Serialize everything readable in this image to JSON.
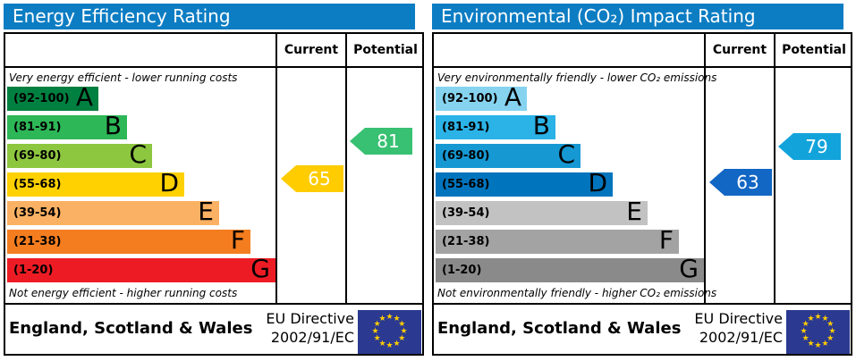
{
  "accent_color": "#0d7dc3",
  "eu_flag": {
    "background": "#2b3990",
    "star_color": "#ffcc00",
    "star_count": 12
  },
  "panels": [
    {
      "title": "Energy Efficiency Rating",
      "header": {
        "current": "Current",
        "potential": "Potential"
      },
      "top_caption": "Very energy efficient - lower running costs",
      "bottom_caption": "Not energy efficient - higher running costs",
      "bands": [
        {
          "range": "(92-100)",
          "letter": "A",
          "min": 92,
          "max": 100,
          "color": "#008040"
        },
        {
          "range": "(81-91)",
          "letter": "B",
          "min": 81,
          "max": 91,
          "color": "#2db757"
        },
        {
          "range": "(69-80)",
          "letter": "C",
          "min": 69,
          "max": 80,
          "color": "#8dc63f"
        },
        {
          "range": "(55-68)",
          "letter": "D",
          "min": 55,
          "max": 68,
          "color": "#ffd100"
        },
        {
          "range": "(39-54)",
          "letter": "E",
          "min": 39,
          "max": 54,
          "color": "#fbb163"
        },
        {
          "range": "(21-38)",
          "letter": "F",
          "min": 21,
          "max": 38,
          "color": "#f47d1f"
        },
        {
          "range": "(1-20)",
          "letter": "G",
          "min": 1,
          "max": 20,
          "color": "#ed1c24"
        }
      ],
      "current": {
        "value": "65",
        "color": "#ffcc00"
      },
      "potential": {
        "value": "81",
        "color": "#38c172"
      },
      "footer": {
        "region": "England, Scotland & Wales",
        "directive_line1": "EU Directive",
        "directive_line2": "2002/91/EC"
      }
    },
    {
      "title": "Environmental (CO₂) Impact Rating",
      "header": {
        "current": "Current",
        "potential": "Potential"
      },
      "top_caption": "Very environmentally friendly - lower CO₂ emissions",
      "bottom_caption": "Not environmentally friendly - higher CO₂ emissions",
      "bands": [
        {
          "range": "(92-100)",
          "letter": "A",
          "min": 92,
          "max": 100,
          "color": "#86d3f0"
        },
        {
          "range": "(81-91)",
          "letter": "B",
          "min": 81,
          "max": 91,
          "color": "#2bb2e7"
        },
        {
          "range": "(69-80)",
          "letter": "C",
          "min": 69,
          "max": 80,
          "color": "#1698d3"
        },
        {
          "range": "(55-68)",
          "letter": "D",
          "min": 55,
          "max": 68,
          "color": "#0074bd"
        },
        {
          "range": "(39-54)",
          "letter": "E",
          "min": 39,
          "max": 54,
          "color": "#c2c2c2"
        },
        {
          "range": "(21-38)",
          "letter": "F",
          "min": 21,
          "max": 38,
          "color": "#a3a3a3"
        },
        {
          "range": "(1-20)",
          "letter": "G",
          "min": 1,
          "max": 20,
          "color": "#8a8a8a"
        }
      ],
      "current": {
        "value": "63",
        "color": "#1266c4"
      },
      "potential": {
        "value": "79",
        "color": "#12a3db"
      },
      "footer": {
        "region": "England, Scotland & Wales",
        "directive_line1": "EU Directive",
        "directive_line2": "2002/91/EC"
      }
    }
  ],
  "chart_data": [
    {
      "type": "bar",
      "title": "Energy Efficiency Rating",
      "categories": [
        "A (92-100)",
        "B (81-91)",
        "C (69-80)",
        "D (55-68)",
        "E (39-54)",
        "F (21-38)",
        "G (1-20)"
      ],
      "series": [
        {
          "name": "Current",
          "values": [
            65
          ],
          "band": "D"
        },
        {
          "name": "Potential",
          "values": [
            81
          ],
          "band": "B"
        }
      ],
      "top_caption": "Very energy efficient - lower running costs",
      "bottom_caption": "Not energy efficient - higher running costs",
      "region": "England, Scotland & Wales",
      "directive": "EU Directive 2002/91/EC",
      "scale": [
        1,
        100
      ]
    },
    {
      "type": "bar",
      "title": "Environmental (CO₂) Impact Rating",
      "categories": [
        "A (92-100)",
        "B (81-91)",
        "C (69-80)",
        "D (55-68)",
        "E (39-54)",
        "F (21-38)",
        "G (1-20)"
      ],
      "series": [
        {
          "name": "Current",
          "values": [
            63
          ],
          "band": "D"
        },
        {
          "name": "Potential",
          "values": [
            79
          ],
          "band": "C"
        }
      ],
      "top_caption": "Very environmentally friendly - lower CO₂ emissions",
      "bottom_caption": "Not environmentally friendly - higher CO₂ emissions",
      "region": "England, Scotland & Wales",
      "directive": "EU Directive 2002/91/EC",
      "scale": [
        1,
        100
      ]
    }
  ]
}
